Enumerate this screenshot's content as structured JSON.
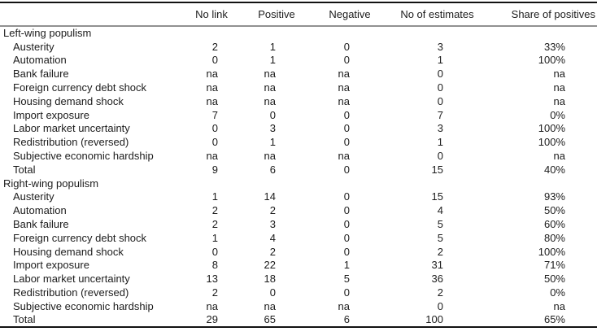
{
  "table": {
    "columns": [
      "",
      "No link",
      "Positive",
      "Negative",
      "No of estimates",
      "Share of positives"
    ],
    "na_label": "na",
    "sections": [
      {
        "label": "Left-wing populism",
        "rows": [
          {
            "label": "Austerity",
            "values": [
              "2",
              "1",
              "0",
              "3",
              "33%"
            ]
          },
          {
            "label": "Automation",
            "values": [
              "0",
              "1",
              "0",
              "1",
              "100%"
            ]
          },
          {
            "label": "Bank failure",
            "values": [
              "na",
              "na",
              "na",
              "0",
              "na"
            ]
          },
          {
            "label": "Foreign currency debt shock",
            "values": [
              "na",
              "na",
              "na",
              "0",
              "na"
            ]
          },
          {
            "label": "Housing demand shock",
            "values": [
              "na",
              "na",
              "na",
              "0",
              "na"
            ]
          },
          {
            "label": "Import exposure",
            "values": [
              "7",
              "0",
              "0",
              "7",
              "0%"
            ]
          },
          {
            "label": "Labor market uncertainty",
            "values": [
              "0",
              "3",
              "0",
              "3",
              "100%"
            ]
          },
          {
            "label": "Redistribution (reversed)",
            "values": [
              "0",
              "1",
              "0",
              "1",
              "100%"
            ]
          },
          {
            "label": "Subjective economic hardship",
            "values": [
              "na",
              "na",
              "na",
              "0",
              "na"
            ]
          },
          {
            "label": "Total",
            "values": [
              "9",
              "6",
              "0",
              "15",
              "40%"
            ]
          }
        ]
      },
      {
        "label": "Right-wing populism",
        "rows": [
          {
            "label": "Austerity",
            "values": [
              "1",
              "14",
              "0",
              "15",
              "93%"
            ]
          },
          {
            "label": "Automation",
            "values": [
              "2",
              "2",
              "0",
              "4",
              "50%"
            ]
          },
          {
            "label": "Bank failure",
            "values": [
              "2",
              "3",
              "0",
              "5",
              "60%"
            ]
          },
          {
            "label": "Foreign currency debt shock",
            "values": [
              "1",
              "4",
              "0",
              "5",
              "80%"
            ]
          },
          {
            "label": "Housing demand shock",
            "values": [
              "0",
              "2",
              "0",
              "2",
              "100%"
            ]
          },
          {
            "label": "Import exposure",
            "values": [
              "8",
              "22",
              "1",
              "31",
              "71%"
            ]
          },
          {
            "label": "Labor market uncertainty",
            "values": [
              "13",
              "18",
              "5",
              "36",
              "50%"
            ]
          },
          {
            "label": "Redistribution (reversed)",
            "values": [
              "2",
              "0",
              "0",
              "2",
              "0%"
            ]
          },
          {
            "label": "Subjective economic hardship",
            "values": [
              "na",
              "na",
              "na",
              "0",
              "na"
            ]
          },
          {
            "label": "Total",
            "values": [
              "29",
              "65",
              "6",
              "100",
              "65%"
            ]
          }
        ]
      }
    ],
    "colors": {
      "rule_dark": "#121212",
      "rule_light": "#919191",
      "text": "#1c1c1c",
      "background": "#ffffff"
    }
  }
}
